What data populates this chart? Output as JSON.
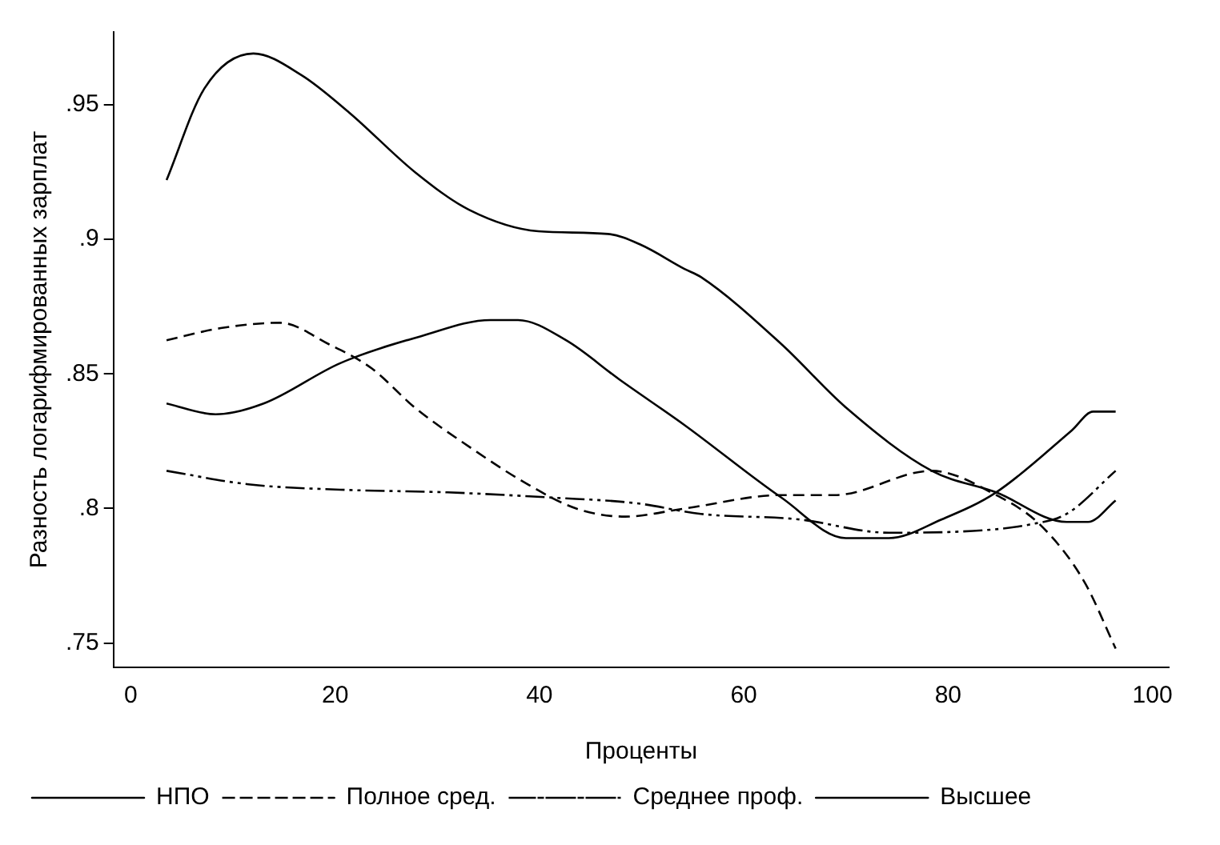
{
  "chart_data": {
    "type": "line",
    "xlabel": "Проценты",
    "ylabel": "Разность логарифмированных зарплат",
    "xlim": [
      -1.7,
      101.6
    ],
    "ylim": [
      0.741,
      0.977
    ],
    "xticks": [
      0,
      20,
      40,
      60,
      80,
      100
    ],
    "yticks": [
      {
        "value": 0.75,
        "label": ".75"
      },
      {
        "value": 0.8,
        "label": ".8"
      },
      {
        "value": 0.85,
        "label": ".85"
      },
      {
        "value": 0.9,
        "label": ".9"
      },
      {
        "value": 0.95,
        "label": ".95"
      }
    ],
    "grid": false,
    "legend": "bottom",
    "marker": "none",
    "series": [
      {
        "name": "НПО",
        "color": "#000000",
        "line_style": "solid",
        "x": [
          3.5,
          7.2,
          12,
          16.7,
          21.4,
          27.8,
          33.1,
          39.9,
          46.7,
          49.9,
          54.2,
          55.8,
          63.7,
          70,
          78.4,
          84.7,
          91.6,
          93.7,
          96.4
        ],
        "values": [
          0.922,
          0.956,
          0.969,
          0.961,
          0.947,
          0.925,
          0.911,
          0.903,
          0.902,
          0.898,
          0.889,
          0.886,
          0.861,
          0.8375,
          0.814,
          0.806,
          0.795,
          0.795,
          0.803
        ]
      },
      {
        "name": "Полное сред.",
        "color": "#000000",
        "line_style": "dashed",
        "x": [
          3.5,
          8.8,
          14.6,
          19.4,
          23.6,
          27.8,
          33.1,
          38.4,
          43.6,
          48.4,
          54.2,
          63.7,
          68.9,
          78.4,
          84.7,
          89,
          93.3,
          96.4
        ],
        "values": [
          0.8625,
          0.867,
          0.869,
          0.861,
          0.852,
          0.8375,
          0.823,
          0.81,
          0.8,
          0.797,
          0.8,
          0.805,
          0.805,
          0.814,
          0.805,
          0.794,
          0.773,
          0.748
        ]
      },
      {
        "name": "Среднее проф.",
        "color": "#000000",
        "line_style": "dashdot",
        "x": [
          3.5,
          11.5,
          20.5,
          31,
          41.5,
          49.4,
          55.8,
          65.3,
          74.2,
          83.7,
          87.9,
          91.6,
          96.4
        ],
        "values": [
          0.814,
          0.809,
          0.807,
          0.806,
          0.804,
          0.802,
          0.798,
          0.796,
          0.791,
          0.792,
          0.794,
          0.798,
          0.814
        ]
      },
      {
        "name": "Высшее",
        "color": "#000000",
        "line_style": "solid",
        "x": [
          3.5,
          8.3,
          13,
          20.5,
          28.4,
          35.2,
          37.9,
          42.6,
          47.8,
          54.2,
          63.7,
          70,
          74.2,
          79.4,
          84.7,
          92.1,
          94.2,
          96.4
        ],
        "values": [
          0.839,
          0.835,
          0.839,
          0.854,
          0.864,
          0.87,
          0.87,
          0.8625,
          0.848,
          0.831,
          0.804,
          0.789,
          0.789,
          0.796,
          0.806,
          0.829,
          0.836,
          0.836
        ]
      }
    ]
  }
}
